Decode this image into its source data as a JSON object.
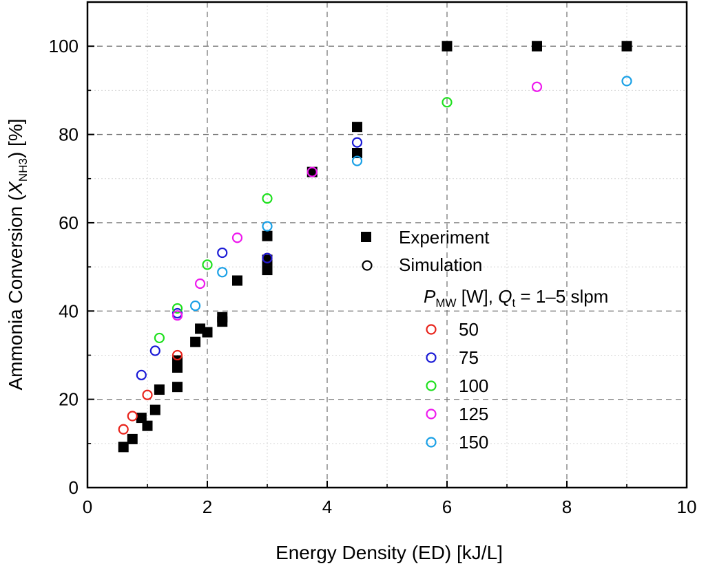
{
  "chart_data": {
    "type": "scatter",
    "xlabel": "Energy Density (ED) [kJ/L]",
    "ylabel": {
      "before": "Ammonia Conversion (",
      "var": "X",
      "sub": "NH3",
      "after": ") [%]"
    },
    "xlim": [
      0,
      10
    ],
    "ylim": [
      0,
      110
    ],
    "x_ticks": [
      0,
      2,
      4,
      6,
      8,
      10
    ],
    "y_ticks": [
      0,
      20,
      40,
      60,
      80,
      100
    ],
    "x_minor_ticks": [
      1,
      3,
      5,
      7,
      9
    ],
    "y_minor_ticks": [
      10,
      30,
      50,
      70,
      90
    ],
    "grid": true,
    "legend": {
      "position": "center-right",
      "experiment_label": "Experiment",
      "simulation_label": "Simulation",
      "header": {
        "p": "P",
        "p_sub": "MW",
        "mid": " [W], ",
        "q": "Q",
        "q_sub": "t",
        "tail": " = 1–5 slpm"
      },
      "entries": [
        {
          "label": "50",
          "color": "#e8241c"
        },
        {
          "label": "75",
          "color": "#1a1ad6"
        },
        {
          "label": "100",
          "color": "#1ee01e"
        },
        {
          "label": "125",
          "color": "#ee1aee"
        },
        {
          "label": "150",
          "color": "#19a0e6"
        }
      ]
    },
    "experiment": {
      "name": "Experiment",
      "color": "#000000",
      "points": [
        [
          0.6,
          9.2
        ],
        [
          0.75,
          11.0
        ],
        [
          0.9,
          15.8
        ],
        [
          1.0,
          14.0
        ],
        [
          1.13,
          17.6
        ],
        [
          1.2,
          22.2
        ],
        [
          1.5,
          22.8
        ],
        [
          1.5,
          27.2
        ],
        [
          1.5,
          28.8
        ],
        [
          1.8,
          33.0
        ],
        [
          1.88,
          36.0
        ],
        [
          2.0,
          35.2
        ],
        [
          2.25,
          37.6
        ],
        [
          2.25,
          38.6
        ],
        [
          2.5,
          46.9
        ],
        [
          3.0,
          49.3
        ],
        [
          3.0,
          51.6
        ],
        [
          3.0,
          57.0
        ],
        [
          3.75,
          71.5
        ],
        [
          4.5,
          75.8
        ],
        [
          4.5,
          81.7
        ],
        [
          6.0,
          100.0
        ],
        [
          7.5,
          100.0
        ],
        [
          9.0,
          100.0
        ]
      ]
    },
    "simulation": [
      {
        "name": "50",
        "color": "#e8241c",
        "points": [
          [
            0.6,
            13.2
          ],
          [
            0.75,
            16.2
          ],
          [
            1.0,
            21.0
          ],
          [
            1.5,
            30.0
          ],
          [
            3.0,
            52.0
          ]
        ]
      },
      {
        "name": "75",
        "color": "#1a1ad6",
        "points": [
          [
            0.9,
            25.5
          ],
          [
            1.13,
            31.0
          ],
          [
            1.5,
            39.5
          ],
          [
            2.25,
            53.2
          ],
          [
            3.0,
            52.0
          ],
          [
            4.5,
            78.2
          ]
        ]
      },
      {
        "name": "100",
        "color": "#1ee01e",
        "points": [
          [
            1.2,
            33.9
          ],
          [
            1.5,
            40.6
          ],
          [
            2.0,
            50.5
          ],
          [
            3.0,
            65.5
          ],
          [
            6.0,
            87.3
          ]
        ]
      },
      {
        "name": "125",
        "color": "#ee1aee",
        "points": [
          [
            1.5,
            39.0
          ],
          [
            1.88,
            46.2
          ],
          [
            2.5,
            56.6
          ],
          [
            3.75,
            71.5
          ],
          [
            7.5,
            90.8
          ]
        ]
      },
      {
        "name": "150",
        "color": "#19a0e6",
        "points": [
          [
            1.8,
            41.2
          ],
          [
            2.25,
            48.8
          ],
          [
            3.0,
            59.2
          ],
          [
            4.5,
            74.0
          ],
          [
            9.0,
            92.1
          ]
        ]
      }
    ]
  }
}
